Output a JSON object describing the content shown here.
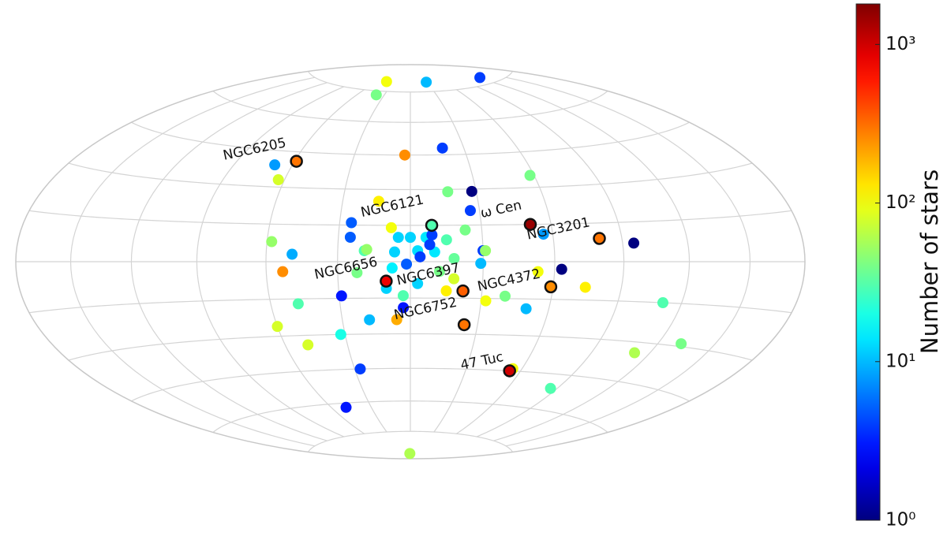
{
  "chart_data": {
    "type": "scatter",
    "projection": "hammer",
    "colorbar": {
      "label": "Number of stars",
      "scale": "log",
      "clim": [
        1,
        1800
      ],
      "ticks": [
        {
          "value": 1,
          "label": "10⁰"
        },
        {
          "value": 10,
          "label": "10¹"
        },
        {
          "value": 100,
          "label": "10²"
        },
        {
          "value": 1000,
          "label": "10³"
        }
      ]
    },
    "points": [
      {
        "lon": 44,
        "lat": 80,
        "n": 100
      },
      {
        "lon": 39,
        "lat": 73,
        "n": 40
      },
      {
        "lon": -29,
        "lat": 80,
        "n": 10
      },
      {
        "lon": -125,
        "lat": 78,
        "n": 4
      },
      {
        "lon": 3,
        "lat": 45,
        "n": 250
      },
      {
        "lon": -18,
        "lat": 48,
        "n": 4
      },
      {
        "lon": 69,
        "lat": 39,
        "n": 8
      },
      {
        "lon": 63,
        "lat": 33,
        "n": 80
      },
      {
        "lon": -58,
        "lat": 35,
        "n": 40
      },
      {
        "lon": -28,
        "lat": 29,
        "n": 1
      },
      {
        "lon": -17,
        "lat": 29,
        "n": 40
      },
      {
        "lon": -26,
        "lat": 21,
        "n": 4
      },
      {
        "lon": 14,
        "lat": 25,
        "n": 120
      },
      {
        "lon": 25,
        "lat": 16,
        "n": 5
      },
      {
        "lon": 25,
        "lat": 10,
        "n": 5
      },
      {
        "lon": 58,
        "lat": 8,
        "n": 50
      },
      {
        "lon": 49,
        "lat": 3,
        "n": 9
      },
      {
        "lon": 53,
        "lat": -4,
        "n": 250
      },
      {
        "lon": -95,
        "lat": 7,
        "n": 1
      },
      {
        "lon": -63,
        "lat": -3,
        "n": 1
      },
      {
        "lon": -74,
        "lat": -10,
        "n": 120
      },
      {
        "lon": -32,
        "lat": -16,
        "n": 100
      },
      {
        "lon": -40,
        "lat": -14,
        "n": 40
      },
      {
        "lon": -50,
        "lat": -19,
        "n": 10
      },
      {
        "lon": -111,
        "lat": -15,
        "n": 30
      },
      {
        "lon": -132,
        "lat": -29,
        "n": 40
      },
      {
        "lon": -112,
        "lat": -34,
        "n": 60
      },
      {
        "lon": -86,
        "lat": -51,
        "n": 30
      },
      {
        "lon": 29,
        "lat": -14,
        "n": 3
      },
      {
        "lon": 48,
        "lat": -17,
        "n": 30
      },
      {
        "lon": 60,
        "lat": -26,
        "n": 80
      },
      {
        "lon": 49,
        "lat": -34,
        "n": 80
      },
      {
        "lon": 32,
        "lat": -30,
        "n": 20
      },
      {
        "lon": 18,
        "lat": -24,
        "n": 10
      },
      {
        "lon": 27,
        "lat": -45,
        "n": 4
      },
      {
        "lon": 49,
        "lat": -62,
        "n": 3
      },
      {
        "lon": 3,
        "lat": -87,
        "n": 60
      },
      {
        "lon": -55,
        "lat": -44,
        "n": 100
      },
      {
        "lon": -30,
        "lat": 4.5,
        "n": 4
      },
      {
        "lon": -29,
        "lat": -0.7,
        "n": 10
      },
      {
        "lon": -23,
        "lat": 13,
        "n": 40
      },
      {
        "lon": -31,
        "lat": 4.5,
        "n": 50
      },
      {
        "lon": -53,
        "lat": -4,
        "n": 100
      },
      {
        "lon": -56,
        "lat": 11,
        "n": 8
      },
      {
        "lon": 5,
        "lat": 10,
        "n": 12
      },
      {
        "lon": 0,
        "lat": 10,
        "n": 12
      },
      {
        "lon": -3,
        "lat": 4.5,
        "n": 13
      },
      {
        "lon": 6.5,
        "lat": 4,
        "n": 12
      },
      {
        "lon": 1.6,
        "lat": -1,
        "n": 5
      },
      {
        "lon": -4,
        "lat": 2,
        "n": 4
      },
      {
        "lon": 7.5,
        "lat": -2.6,
        "n": 15
      },
      {
        "lon": -6.5,
        "lat": 10,
        "n": 14
      },
      {
        "lon": -10,
        "lat": 4,
        "n": 14
      },
      {
        "lon": -15,
        "lat": 9,
        "n": 30
      },
      {
        "lon": -18,
        "lat": 1.3,
        "n": 35
      },
      {
        "lon": 19,
        "lat": 4.5,
        "n": 30
      },
      {
        "lon": -12,
        "lat": -4,
        "n": 40
      },
      {
        "lon": -18,
        "lat": -7,
        "n": 80
      },
      {
        "lon": -15,
        "lat": -12,
        "n": 120
      },
      {
        "lon": 3,
        "lat": -14,
        "n": 30
      },
      {
        "lon": 10,
        "lat": -11,
        "n": 12
      },
      {
        "lon": 3,
        "lat": -19,
        "n": 3
      },
      {
        "lon": 6,
        "lat": -24,
        "n": 200
      },
      {
        "lon": -8,
        "lat": 7,
        "n": 4
      },
      {
        "lon": -9,
        "lat": 11,
        "n": 4
      },
      {
        "lon": 8,
        "lat": 14,
        "n": 100
      },
      {
        "lon": 18,
        "lat": 5,
        "n": 50
      },
      {
        "lon": -3,
        "lat": -9,
        "n": 12
      },
      {
        "lon": 22,
        "lat": -4.5,
        "n": 40
      }
    ],
    "clusters": [
      {
        "name": "NGC6205",
        "lon": 59,
        "lat": 41,
        "n": 300
      },
      {
        "name": "NGC6121",
        "lon": -9,
        "lat": 15,
        "n": 30
      },
      {
        "name": "ω Cen",
        "lon": -51,
        "lat": 15,
        "n": 1500
      },
      {
        "name": "NGC3201",
        "lon": -80,
        "lat": 9,
        "n": 300
      },
      {
        "name": "NGC6656",
        "lon": 10,
        "lat": -8,
        "n": 800
      },
      {
        "name": "NGC6397",
        "lon": -22,
        "lat": -12,
        "n": 350
      },
      {
        "name": "NGC4372",
        "lon": -59,
        "lat": -10,
        "n": 250
      },
      {
        "name": "NGC6752",
        "lon": -24,
        "lat": -26,
        "n": 300
      },
      {
        "name": "47 Tuc",
        "lon": -54,
        "lat": -45,
        "n": 1000
      }
    ]
  }
}
